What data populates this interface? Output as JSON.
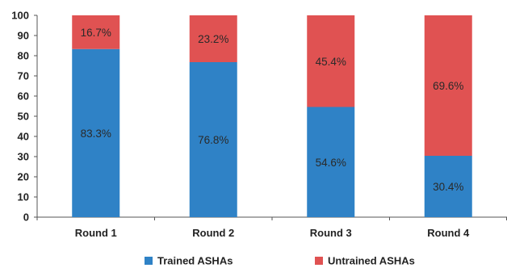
{
  "chart_data": {
    "type": "bar",
    "stacked": true,
    "categories": [
      "Round 1",
      "Round 2",
      "Round 3",
      "Round 4"
    ],
    "series": [
      {
        "name": "Trained ASHAs",
        "color": "#2f82c6",
        "values": [
          83.3,
          76.8,
          54.6,
          30.4
        ],
        "labels": [
          "83.3%",
          "76.8%",
          "54.6%",
          "30.4%"
        ]
      },
      {
        "name": "Untrained ASHAs",
        "color": "#e05252",
        "values": [
          16.7,
          23.2,
          45.4,
          69.6
        ],
        "labels": [
          "16.7%",
          "23.2%",
          "45.4%",
          "69.6%"
        ]
      }
    ],
    "ylim": [
      0,
      100
    ],
    "yticks": [
      0,
      10,
      20,
      30,
      40,
      50,
      60,
      70,
      80,
      90,
      100
    ],
    "title": "",
    "xlabel": "",
    "ylabel": "",
    "grid": false,
    "legend_position": "bottom"
  }
}
